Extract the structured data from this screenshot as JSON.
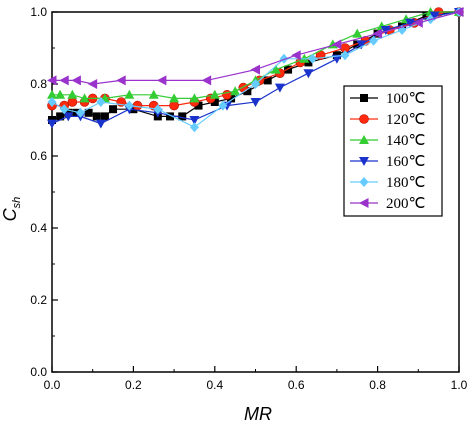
{
  "chart_data": {
    "type": "line",
    "xlabel": "MR",
    "ylabel": "C",
    "ylabel_sub": "sh",
    "xlim": [
      0,
      1.0
    ],
    "ylim": [
      0,
      1.0
    ],
    "x_ticks": [
      "0.0",
      "0.2",
      "0.4",
      "0.6",
      "0.8",
      "1.0"
    ],
    "y_ticks": [
      "0.0",
      "0.2",
      "0.4",
      "0.6",
      "0.8",
      "1.0"
    ],
    "x_tick_values": [
      0,
      0.2,
      0.4,
      0.6,
      0.8,
      1.0
    ],
    "y_tick_values": [
      0,
      0.2,
      0.4,
      0.6,
      0.8,
      1.0
    ],
    "legend_position": "right",
    "series": [
      {
        "name": "100℃",
        "color": "#000000",
        "marker": "square",
        "x": [
          0,
          0.02,
          0.04,
          0.06,
          0.09,
          0.11,
          0.13,
          0.15,
          0.2,
          0.26,
          0.29,
          0.32,
          0.36,
          0.4,
          0.44,
          0.48,
          0.53,
          0.58,
          0.63,
          0.7,
          0.75,
          0.8,
          0.86,
          0.92,
          1.0
        ],
        "y": [
          0.7,
          0.71,
          0.72,
          0.72,
          0.72,
          0.71,
          0.71,
          0.73,
          0.73,
          0.71,
          0.71,
          0.71,
          0.74,
          0.75,
          0.76,
          0.78,
          0.81,
          0.84,
          0.86,
          0.88,
          0.91,
          0.94,
          0.96,
          0.99,
          1.0
        ]
      },
      {
        "name": "120℃",
        "color": "#ff2a0d",
        "marker": "circle",
        "x": [
          0,
          0.03,
          0.05,
          0.08,
          0.1,
          0.13,
          0.17,
          0.21,
          0.25,
          0.3,
          0.35,
          0.39,
          0.43,
          0.47,
          0.51,
          0.56,
          0.61,
          0.66,
          0.72,
          0.77,
          0.83,
          0.89,
          0.95,
          1.0
        ],
        "y": [
          0.74,
          0.74,
          0.75,
          0.75,
          0.76,
          0.76,
          0.75,
          0.74,
          0.74,
          0.74,
          0.75,
          0.76,
          0.77,
          0.79,
          0.81,
          0.83,
          0.86,
          0.88,
          0.9,
          0.92,
          0.95,
          0.97,
          1.0,
          1.0
        ]
      },
      {
        "name": "140℃",
        "color": "#33cc33",
        "marker": "triangle-up",
        "x": [
          0,
          0.02,
          0.05,
          0.08,
          0.13,
          0.19,
          0.25,
          0.3,
          0.35,
          0.4,
          0.45,
          0.5,
          0.55,
          0.62,
          0.69,
          0.75,
          0.81,
          0.87,
          0.93,
          1.0
        ],
        "y": [
          0.77,
          0.77,
          0.77,
          0.76,
          0.76,
          0.77,
          0.77,
          0.76,
          0.76,
          0.77,
          0.78,
          0.81,
          0.84,
          0.87,
          0.91,
          0.94,
          0.96,
          0.98,
          1.0,
          1.0
        ]
      },
      {
        "name": "160℃",
        "color": "#1a33cc",
        "marker": "triangle-down",
        "x": [
          0,
          0.04,
          0.07,
          0.12,
          0.19,
          0.26,
          0.35,
          0.43,
          0.5,
          0.56,
          0.63,
          0.7,
          0.76,
          0.82,
          0.88,
          0.94,
          1.0
        ],
        "y": [
          0.69,
          0.71,
          0.71,
          0.69,
          0.73,
          0.72,
          0.7,
          0.74,
          0.75,
          0.79,
          0.83,
          0.87,
          0.91,
          0.95,
          0.97,
          0.99,
          1.0
        ]
      },
      {
        "name": "180℃",
        "color": "#66ccff",
        "marker": "diamond",
        "x": [
          0,
          0.03,
          0.07,
          0.12,
          0.19,
          0.26,
          0.35,
          0.42,
          0.5,
          0.57,
          0.64,
          0.72,
          0.79,
          0.86,
          0.93,
          1.0
        ],
        "y": [
          0.75,
          0.73,
          0.72,
          0.75,
          0.74,
          0.73,
          0.68,
          0.74,
          0.8,
          0.87,
          0.87,
          0.88,
          0.92,
          0.95,
          0.98,
          1.0
        ]
      },
      {
        "name": "200℃",
        "color": "#9933cc",
        "marker": "triangle-left",
        "x": [
          0,
          0.03,
          0.06,
          0.1,
          0.17,
          0.27,
          0.38,
          0.5,
          0.6,
          0.7,
          0.8,
          0.9,
          1.0
        ],
        "y": [
          0.81,
          0.81,
          0.81,
          0.8,
          0.81,
          0.81,
          0.81,
          0.84,
          0.88,
          0.91,
          0.94,
          0.97,
          1.0
        ]
      }
    ]
  }
}
